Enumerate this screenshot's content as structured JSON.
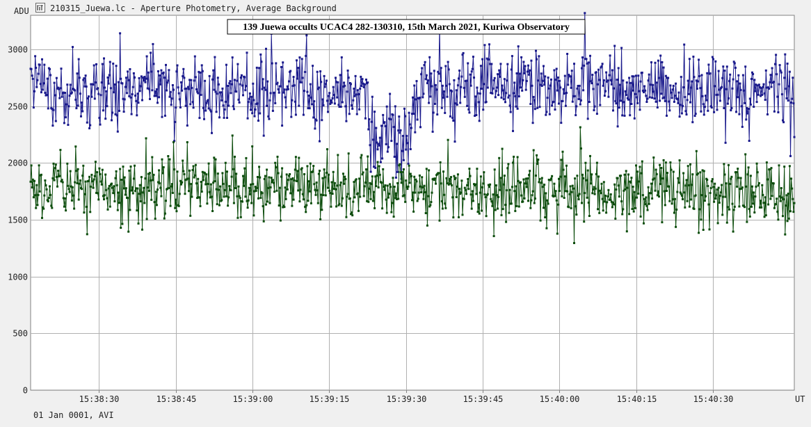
{
  "window": {
    "title": "210315_Juewa.lc - Aperture Photometry, Average Background",
    "footer": "01 Jan 0001, AVI"
  },
  "icons": {
    "app": "lightcurve-app-icon"
  },
  "colors": {
    "target": "#1a1a8c",
    "comparison": "#0d4d0d",
    "grid": "#a8a8a8",
    "background": "#ffffff"
  },
  "chart_data": {
    "type": "line",
    "title": "139 Juewa occults UCAC4 282-130310, 15th March 2021, Kuriwa Observatory",
    "ylabel": "ADU",
    "xlabel": "UT",
    "ylim": [
      0,
      3300
    ],
    "yticks": [
      0,
      500,
      1000,
      1500,
      2000,
      2500,
      3000
    ],
    "xlim_seconds": [
      0,
      99.5
    ],
    "xticks": [
      {
        "t": 8.9,
        "label": "15:38:30"
      },
      {
        "t": 18.9,
        "label": "15:38:45"
      },
      {
        "t": 28.9,
        "label": "15:39:00"
      },
      {
        "t": 38.9,
        "label": "15:39:15"
      },
      {
        "t": 48.9,
        "label": "15:39:30"
      },
      {
        "t": 58.9,
        "label": "15:39:45"
      },
      {
        "t": 68.9,
        "label": "15:40:00"
      },
      {
        "t": 78.9,
        "label": "15:40:15"
      },
      {
        "t": 88.9,
        "label": "15:40:30"
      }
    ],
    "grid": true,
    "series": [
      {
        "role": "target",
        "color": "#1a1a8c",
        "profile": [
          [
            0,
            2700
          ],
          [
            4,
            2650
          ],
          [
            8,
            2620
          ],
          [
            12,
            2650
          ],
          [
            16,
            2630
          ],
          [
            20,
            2680
          ],
          [
            24,
            2620
          ],
          [
            28,
            2640
          ],
          [
            32,
            2660
          ],
          [
            36,
            2630
          ],
          [
            40,
            2600
          ],
          [
            42,
            2620
          ],
          [
            43.3,
            2600
          ],
          [
            44,
            2350
          ],
          [
            46,
            2270
          ],
          [
            48,
            2220
          ],
          [
            49.6,
            2200
          ],
          [
            50.2,
            2550
          ],
          [
            51,
            2640
          ],
          [
            54,
            2640
          ],
          [
            58,
            2700
          ],
          [
            62,
            2700
          ],
          [
            66,
            2700
          ],
          [
            70,
            2680
          ],
          [
            74,
            2690
          ],
          [
            78,
            2640
          ],
          [
            82,
            2650
          ],
          [
            86,
            2680
          ],
          [
            90,
            2620
          ],
          [
            94,
            2620
          ],
          [
            99.5,
            2650
          ]
        ],
        "noise_adu": 150
      },
      {
        "role": "comparison",
        "color": "#0d4d0d",
        "profile": [
          [
            0,
            1770
          ],
          [
            25,
            1780
          ],
          [
            50,
            1770
          ],
          [
            75,
            1760
          ],
          [
            99.5,
            1750
          ]
        ],
        "noise_adu": 140
      }
    ]
  }
}
